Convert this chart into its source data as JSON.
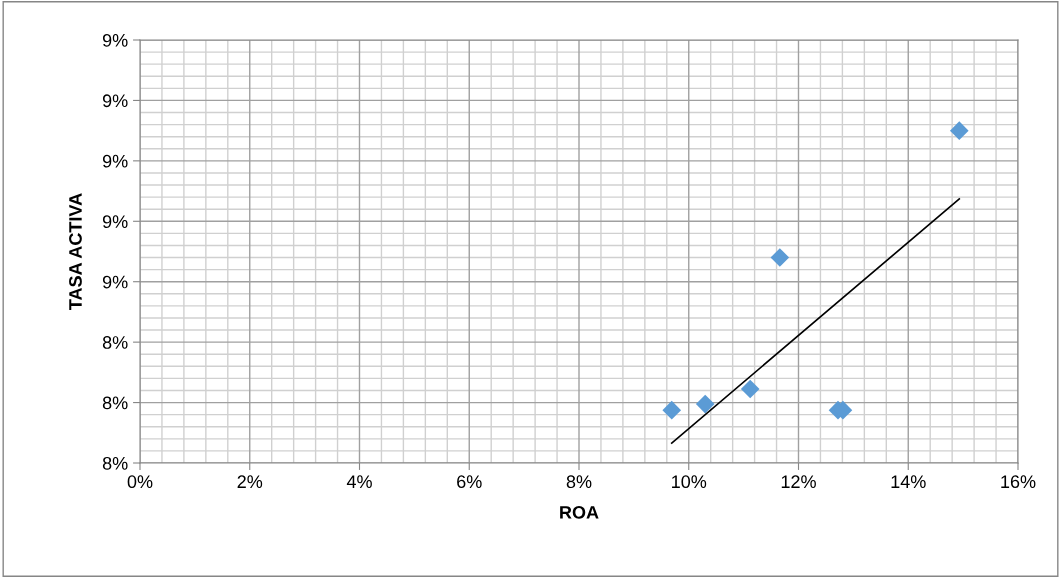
{
  "chart_data": {
    "type": "scatter",
    "xlabel": "ROA",
    "ylabel": "TASA ACTIVA",
    "x": [
      9.69,
      10.3,
      11.12,
      11.66,
      12.72,
      12.81,
      14.93
    ],
    "series": [
      {
        "color": "#5b9bd5",
        "marker": "diamond",
        "values": [
          8.175,
          8.195,
          8.245,
          8.68,
          8.175,
          8.175,
          9.1
        ]
      },
      {
        "type": "line",
        "color": "#000000",
        "marker": "none",
        "line_style": "solid",
        "x": [
          9.69,
          14.93
        ],
        "values": [
          8.066,
          8.874
        ]
      }
    ],
    "xlim": [
      0,
      16
    ],
    "ylim": [
      8.0,
      9.4
    ],
    "xticks": [
      {
        "value": 0,
        "label": "0%"
      },
      {
        "value": 2,
        "label": "2%"
      },
      {
        "value": 4,
        "label": "4%"
      },
      {
        "value": 6,
        "label": "6%"
      },
      {
        "value": 8,
        "label": "8%"
      },
      {
        "value": 10,
        "label": "10%"
      },
      {
        "value": 12,
        "label": "12%"
      },
      {
        "value": 14,
        "label": "14%"
      },
      {
        "value": 16,
        "label": "16%"
      }
    ],
    "yticks": [
      {
        "value": 8.0,
        "label": "8%"
      },
      {
        "value": 8.2,
        "label": "8%"
      },
      {
        "value": 8.4,
        "label": "8%"
      },
      {
        "value": 8.6,
        "label": "9%"
      },
      {
        "value": 8.8,
        "label": "9%"
      },
      {
        "value": 9.0,
        "label": "9%"
      },
      {
        "value": 9.2,
        "label": "9%"
      },
      {
        "value": 9.4,
        "label": "9%"
      }
    ],
    "grid": true
  }
}
